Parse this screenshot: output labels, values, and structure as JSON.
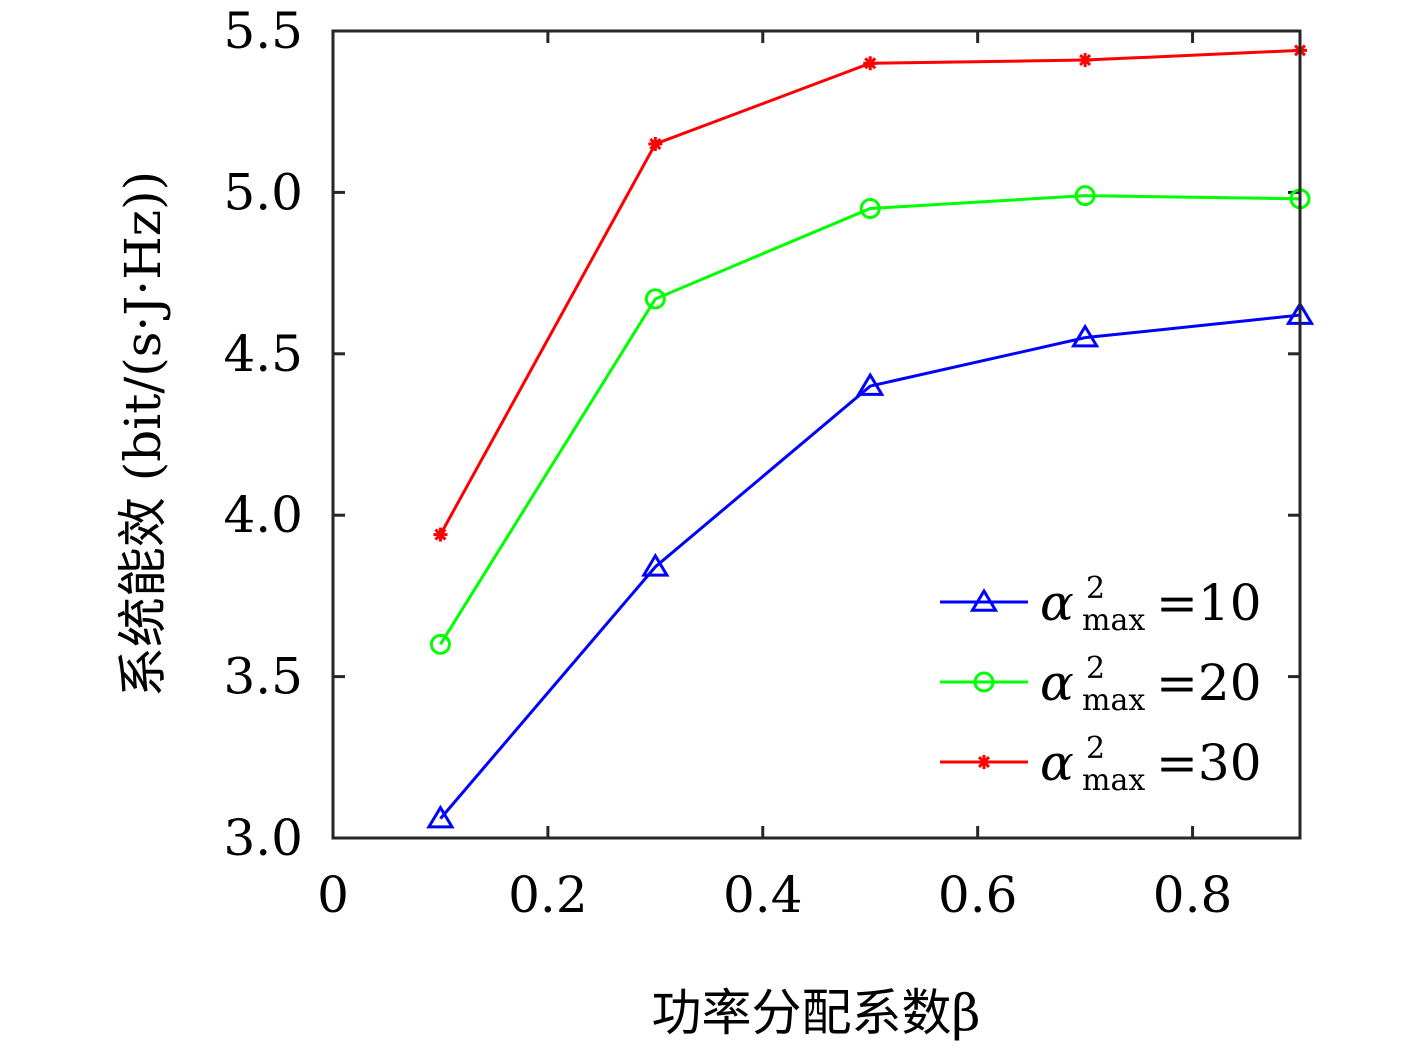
{
  "chart_data": {
    "type": "line",
    "xlabel": "功率分配系数β",
    "ylabel": "系统能效 (bit/(s·J·Hz))",
    "xlim": [
      0,
      0.9
    ],
    "ylim": [
      3.0,
      5.5
    ],
    "x_ticks": [
      "0",
      "0.2",
      "0.4",
      "0.6",
      "0.8"
    ],
    "y_ticks": [
      "3.0",
      "3.5",
      "4.0",
      "4.5",
      "5.0",
      "5.5"
    ],
    "x": [
      0.1,
      0.3,
      0.5,
      0.7,
      0.9
    ],
    "legend_position": "right-lower",
    "series": [
      {
        "name_symbol": "α",
        "name_sup": "2",
        "name_sub": "max",
        "name_value": "=10",
        "color": "#0000ff",
        "marker": "triangle",
        "values": [
          3.06,
          3.84,
          4.4,
          4.55,
          4.62
        ]
      },
      {
        "name_symbol": "α",
        "name_sup": "2",
        "name_sub": "max",
        "name_value": "=20",
        "color": "#00ff00",
        "marker": "circle",
        "values": [
          3.6,
          4.67,
          4.95,
          4.99,
          4.98
        ]
      },
      {
        "name_symbol": "α",
        "name_sup": "2",
        "name_sub": "max",
        "name_value": "=30",
        "color": "#ff0000",
        "marker": "asterisk",
        "values": [
          3.94,
          5.15,
          5.4,
          5.41,
          5.44
        ]
      }
    ]
  }
}
